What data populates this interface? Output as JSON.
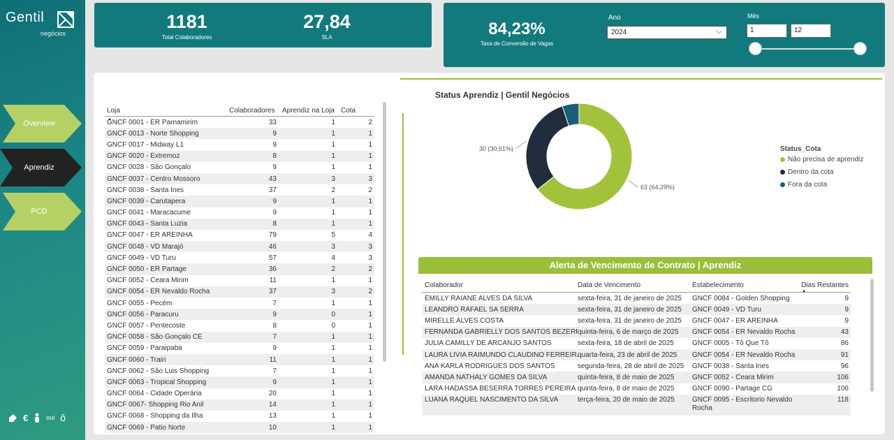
{
  "brand": {
    "name": "Gentil",
    "sub": "negócios"
  },
  "nav": [
    {
      "label": "Overview",
      "color": "#b5d165",
      "active": false
    },
    {
      "label": "Aprendiz",
      "color": "#222222",
      "active": true
    },
    {
      "label": "PCD",
      "color": "#b5d165",
      "active": false
    }
  ],
  "bottom_icons": [
    "accessibility-icon",
    "euro-icon",
    "person-icon",
    "oui-icon",
    "o-icon"
  ],
  "bottom_text": "oui",
  "kpis": {
    "total": {
      "value": "1181",
      "label": "Total Colaboradores"
    },
    "sla": {
      "value": "27,84",
      "label": "SLA"
    },
    "conv": {
      "value": "84,23%",
      "label": "Taxa de Conversão de Vagas"
    }
  },
  "filters": {
    "ano_label": "Ano",
    "ano_value": "2024",
    "mes_label": "Mês",
    "mes_from": "1",
    "mes_to": "12"
  },
  "table": {
    "headers": {
      "loja": "Loja",
      "col": "Colaboradores",
      "apr": "Aprendiz na Loja",
      "cota": "Cota"
    },
    "rows": [
      [
        "GNCF 0001 - ER Parnamirim",
        "33",
        "1",
        "2"
      ],
      [
        "GNCF 0013 - Norte Shopping",
        "9",
        "1",
        "1"
      ],
      [
        "GNCF 0017 - Midway L1",
        "9",
        "1",
        "1"
      ],
      [
        "GNCF 0020 - Extremoz",
        "8",
        "1",
        "1"
      ],
      [
        "GNCF 0028 - São Gonçalo",
        "9",
        "1",
        "1"
      ],
      [
        "GNCF 0037 - Centro Mossoro",
        "43",
        "3",
        "3"
      ],
      [
        "GNCF 0038 - Santa Ines",
        "37",
        "2",
        "2"
      ],
      [
        "GNCF 0039 - Carutapera",
        "9",
        "1",
        "1"
      ],
      [
        "GNCF 0041 - Maracacume",
        "9",
        "1",
        "1"
      ],
      [
        "GNCF 0043 - Santa Luzia",
        "8",
        "1",
        "1"
      ],
      [
        "GNCF 0047 - ER AREINHA",
        "79",
        "5",
        "4"
      ],
      [
        "GNCF 0048 - VD Marajó",
        "46",
        "3",
        "3"
      ],
      [
        "GNCF 0049 - VD Turu",
        "57",
        "4",
        "3"
      ],
      [
        "GNCF 0050 - ER Partage",
        "36",
        "2",
        "2"
      ],
      [
        "GNCF 0052 - Ceara Mirim",
        "11",
        "1",
        "1"
      ],
      [
        "GNCF 0054 - ER Nevaldo Rocha",
        "37",
        "3",
        "2"
      ],
      [
        "GNCF 0055 - Pecém",
        "7",
        "1",
        "1"
      ],
      [
        "GNCF 0056 - Paracuru",
        "9",
        "0",
        "1"
      ],
      [
        "GNCF 0057 - Pentecoste",
        "8",
        "0",
        "1"
      ],
      [
        "GNCF 0058 - São Gonçalo CE",
        "7",
        "1",
        "1"
      ],
      [
        "GNCF 0059 - Paraipaba",
        "9",
        "1",
        "1"
      ],
      [
        "GNCF 0060 - Trairi",
        "11",
        "1",
        "1"
      ],
      [
        "GNCF 0062 - São Luis Shopping",
        "7",
        "1",
        "1"
      ],
      [
        "GNCF 0063 - Tropical Shopping",
        "9",
        "1",
        "1"
      ],
      [
        "GNCF 0064 - Cidade Operária",
        "20",
        "1",
        "1"
      ],
      [
        "GNCF 0067- Shopping Rio Anil",
        "14",
        "1",
        "1"
      ],
      [
        "GNCF 0068 - Shopping da Ilha",
        "13",
        "1",
        "1"
      ],
      [
        "GNCF 0069 - Patio Norte",
        "10",
        "1",
        "1"
      ]
    ]
  },
  "chart_data": {
    "type": "pie",
    "title": "Status Aprendiz | Gentil Negócios",
    "legend_title": "Status_Cota",
    "legend_position": "right",
    "slices": [
      {
        "name": "Não precisa de aprendiz",
        "value": 63,
        "pct": "64,29%",
        "label": "63 (64,29%)",
        "color": "#a3c23c"
      },
      {
        "name": "Dentro da cota",
        "value": 30,
        "pct": "30,61%",
        "label": "30 (30,61%)",
        "color": "#1f2d3d"
      },
      {
        "name": "Fora da cota",
        "value": 5,
        "pct": "5,1%",
        "label": "5 (5,1%)",
        "color": "#1a5e7a"
      }
    ]
  },
  "alert": {
    "title": "Alerta de Vencimento de Contrato | Aprendiz",
    "headers": {
      "colab": "Colaborador",
      "data": "Data de Vencimento",
      "estab": "Estabelecimento",
      "dias": "Dias Restantes"
    },
    "rows": [
      [
        "EMILLY RAIANE ALVES DA SILVA",
        "sexta-feira, 31 de janeiro de 2025",
        "GNCF 0084 - Golden Shopping",
        "9"
      ],
      [
        "LEANDRO RAFAEL SA SERRA",
        "sexta-feira, 31 de janeiro de 2025",
        "GNCF 0049 - VD Turu",
        "9"
      ],
      [
        "MIRELLE ALVES COSTA",
        "sexta-feira, 31 de janeiro de 2025",
        "GNCF 0047 - ER AREINHA",
        "9"
      ],
      [
        "FERNANDA GABRIELLY DOS SANTOS BEZERRA",
        "quinta-feira, 6 de março de 2025",
        "GNCF 0054 - ER Nevaldo Rocha",
        "43"
      ],
      [
        "JULIA CAMILLY DE ARCANJO SANTOS",
        "sexta-feira, 18 de abril de 2025",
        "GNCF 0005 - Tô Que Tô",
        "86"
      ],
      [
        "LAURA LIVIA RAIMUNDO CLAUDINO FERREIRA",
        "quarta-feira, 23 de abril de 2025",
        "GNCF 0054 - ER Nevaldo Rocha",
        "91"
      ],
      [
        "ANA KARLA RODRIGUES DOS SANTOS",
        "segunda-feira, 28 de abril de 2025",
        "GNCF 0038 - Santa Ines",
        "96"
      ],
      [
        "AMANDA NATHALY GOMES DA SILVA",
        "quinta-feira, 8 de maio de 2025",
        "GNCF 0052 - Ceara Mirim",
        "106"
      ],
      [
        "LARA HADASSA BESERRA TORRES PEREIRA",
        "quinta-feira, 8 de maio de 2025",
        "GNCF 0090 - Partage CG",
        "106"
      ],
      [
        "LUANA RAQUEL NASCIMENTO DA SILVA",
        "terça-feira, 20 de maio de 2025",
        "GNCF 0095 - Escritorio Nevaldo Rocha",
        "118"
      ]
    ]
  }
}
